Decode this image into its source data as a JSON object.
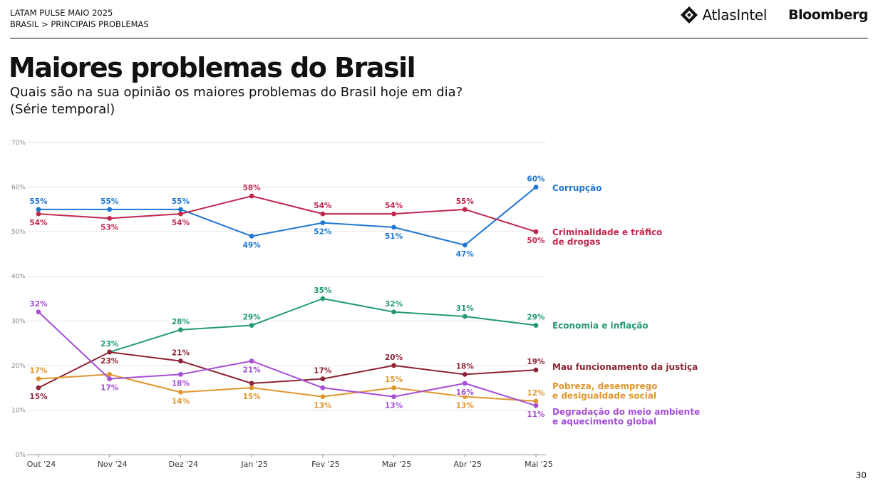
{
  "header": {
    "survey_name": "LATAM PULSE MAIO 2025",
    "breadcrumb": "BRASIL > PRINCIPAIS PROBLEMAS"
  },
  "logos": {
    "atlas": "AtlasIntel",
    "bloomberg": "Bloomberg"
  },
  "title": "Maiores problemas do Brasil",
  "question": "Quais são na sua opinião os maiores problemas do Brasil hoje em dia?",
  "question_note": "(Série temporal)",
  "page_number": "30",
  "chart_data": {
    "type": "line",
    "x": [
      "Out '24",
      "Nov '24",
      "Dez '24",
      "Jan '25",
      "Fev '25",
      "Mar '25",
      "Abr '25",
      "Mai '25"
    ],
    "ylim": [
      0,
      70
    ],
    "yticks": [
      0,
      10,
      20,
      30,
      40,
      50,
      60,
      70
    ],
    "ytick_labels": [
      "0%",
      "10%",
      "20%",
      "30%",
      "40%",
      "50%",
      "60%",
      "70%"
    ],
    "grid": true,
    "series": [
      {
        "name": "Corrupção",
        "color": "#1f77d2",
        "values": [
          55,
          55,
          55,
          49,
          52,
          51,
          47,
          60
        ],
        "labels": [
          "55%",
          "55%",
          "55%",
          "49%",
          "52%",
          "51%",
          "47%",
          "60%"
        ],
        "label_pos": [
          "above",
          "above",
          "above",
          "below",
          "below",
          "below",
          "below",
          "above"
        ]
      },
      {
        "name": "Criminalidade e tráfico de drogas",
        "color": "#c0264e",
        "values": [
          54,
          53,
          54,
          58,
          54,
          54,
          55,
          50
        ],
        "labels": [
          "54%",
          "53%",
          "54%",
          "58%",
          "54%",
          "54%",
          "55%",
          "50%"
        ],
        "label_pos": [
          "below",
          "below",
          "below",
          "above",
          "above",
          "above",
          "above",
          "below"
        ]
      },
      {
        "name": "Economia e inflação",
        "color": "#239a72",
        "values": [
          null,
          23,
          28,
          29,
          35,
          32,
          31,
          29
        ],
        "labels": [
          "",
          "23%",
          "28%",
          "29%",
          "35%",
          "32%",
          "31%",
          "29%"
        ],
        "label_pos": [
          "",
          "above",
          "above",
          "above",
          "above",
          "above",
          "above",
          "above"
        ]
      },
      {
        "name": "Mau funcionamento da justiça",
        "color": "#8e2434",
        "values": [
          15,
          23,
          21,
          16,
          17,
          20,
          18,
          19
        ],
        "labels": [
          "15%",
          "23%",
          "21%",
          "",
          "17%",
          "20%",
          "18%",
          "19%"
        ],
        "label_pos": [
          "below",
          "below",
          "above",
          "",
          "above",
          "above",
          "above",
          "above"
        ]
      },
      {
        "name": "Pobreza, desemprego e desigualdade social",
        "color": "#e0962e",
        "values": [
          17,
          18,
          14,
          15,
          13,
          15,
          13,
          12
        ],
        "labels": [
          "17%",
          "",
          "14%",
          "15%",
          "13%",
          "15%",
          "13%",
          "12%"
        ],
        "label_pos": [
          "above",
          "",
          "below",
          "below",
          "below",
          "above",
          "below",
          "above"
        ]
      },
      {
        "name": "Degradação do meio ambiente e aquecimento global",
        "color": "#a54fd6",
        "values": [
          32,
          17,
          18,
          21,
          15,
          13,
          16,
          11
        ],
        "labels": [
          "32%",
          "17%",
          "18%",
          "21%",
          "",
          "13%",
          "16%",
          "11%"
        ],
        "label_pos": [
          "above",
          "below",
          "below",
          "below",
          "",
          "below",
          "below",
          "below"
        ]
      }
    ],
    "legend_lines": [
      [
        "Corrupção"
      ],
      [
        "Criminalidade e tráfico",
        "de drogas"
      ],
      [
        "Economia e inflação"
      ],
      [
        "Mau funcionamento da justiça"
      ],
      [
        "Pobreza, desemprego",
        "e desigualdade social"
      ],
      [
        "Degradação do meio ambiente",
        "e aquecimento global"
      ]
    ],
    "legend_placement": "right"
  }
}
